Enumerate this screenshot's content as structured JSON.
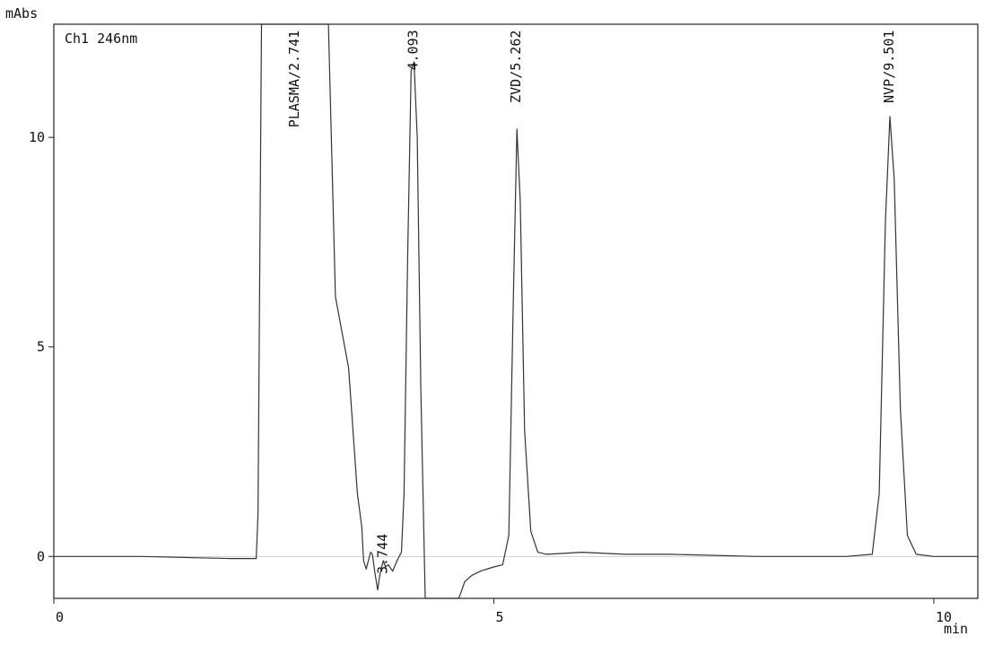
{
  "chart_data": {
    "type": "line",
    "title": "",
    "ylabel": "mAbs",
    "xlabel": "min",
    "channel_label": "Ch1 246nm",
    "xlim": [
      0,
      10.5
    ],
    "ylim": [
      -1,
      12.7
    ],
    "x_ticks": [
      {
        "value": 0,
        "label": "0"
      },
      {
        "value": 5,
        "label": "5"
      },
      {
        "value": 10,
        "label": "10"
      }
    ],
    "y_ticks": [
      {
        "value": 0,
        "label": "0"
      },
      {
        "value": 5,
        "label": "5"
      },
      {
        "value": 10,
        "label": "10"
      }
    ],
    "grid": false,
    "series": [
      {
        "color": "#333333",
        "x": [
          0,
          1.0,
          2.0,
          2.3,
          2.32,
          2.36,
          2.42,
          2.6,
          2.9,
          3.08,
          3.12,
          3.2,
          3.35,
          3.45,
          3.5,
          3.52,
          3.55,
          3.6,
          3.62,
          3.65,
          3.68,
          3.7,
          3.72,
          3.744,
          3.77,
          3.8,
          3.85,
          3.9,
          3.95,
          3.98,
          4.02,
          4.06,
          4.093,
          4.13,
          4.17,
          4.22,
          4.26,
          4.3,
          4.35,
          4.4,
          4.5,
          4.6,
          4.62,
          4.67,
          4.75,
          4.85,
          5.0,
          5.1,
          5.17,
          5.22,
          5.262,
          5.3,
          5.35,
          5.42,
          5.5,
          5.6,
          6.0,
          6.5,
          7.0,
          8.0,
          9.0,
          9.3,
          9.38,
          9.45,
          9.501,
          9.55,
          9.62,
          9.7,
          9.8,
          10.0,
          10.5
        ],
        "y": [
          0,
          0,
          -0.05,
          -0.05,
          1.0,
          12.7,
          12.7,
          12.7,
          12.7,
          12.7,
          12.7,
          6.2,
          4.5,
          1.5,
          0.7,
          -0.1,
          -0.3,
          0.1,
          0.05,
          -0.4,
          -0.8,
          -0.5,
          -0.3,
          -0.1,
          -0.25,
          -0.2,
          -0.35,
          -0.1,
          0.1,
          1.5,
          7.0,
          11.6,
          11.8,
          10.0,
          4.0,
          -1.0,
          -1.0,
          -1.0,
          -1.0,
          -1.0,
          -1.0,
          -1.0,
          -0.9,
          -0.6,
          -0.45,
          -0.35,
          -0.25,
          -0.2,
          0.5,
          6.0,
          10.2,
          8.5,
          3.0,
          0.6,
          0.1,
          0.05,
          0.1,
          0.05,
          0.05,
          0.0,
          0.0,
          0.05,
          1.5,
          8.0,
          10.5,
          9.0,
          3.5,
          0.5,
          0.05,
          0.0,
          0.0
        ]
      }
    ],
    "peak_labels": [
      {
        "x": 2.741,
        "text": "PLASMA/2.741"
      },
      {
        "x": 3.744,
        "text": "3.744"
      },
      {
        "x": 4.093,
        "text": "4.093"
      },
      {
        "x": 5.262,
        "text": "ZVD/5.262"
      },
      {
        "x": 9.501,
        "text": "NVP/9.501"
      }
    ]
  }
}
